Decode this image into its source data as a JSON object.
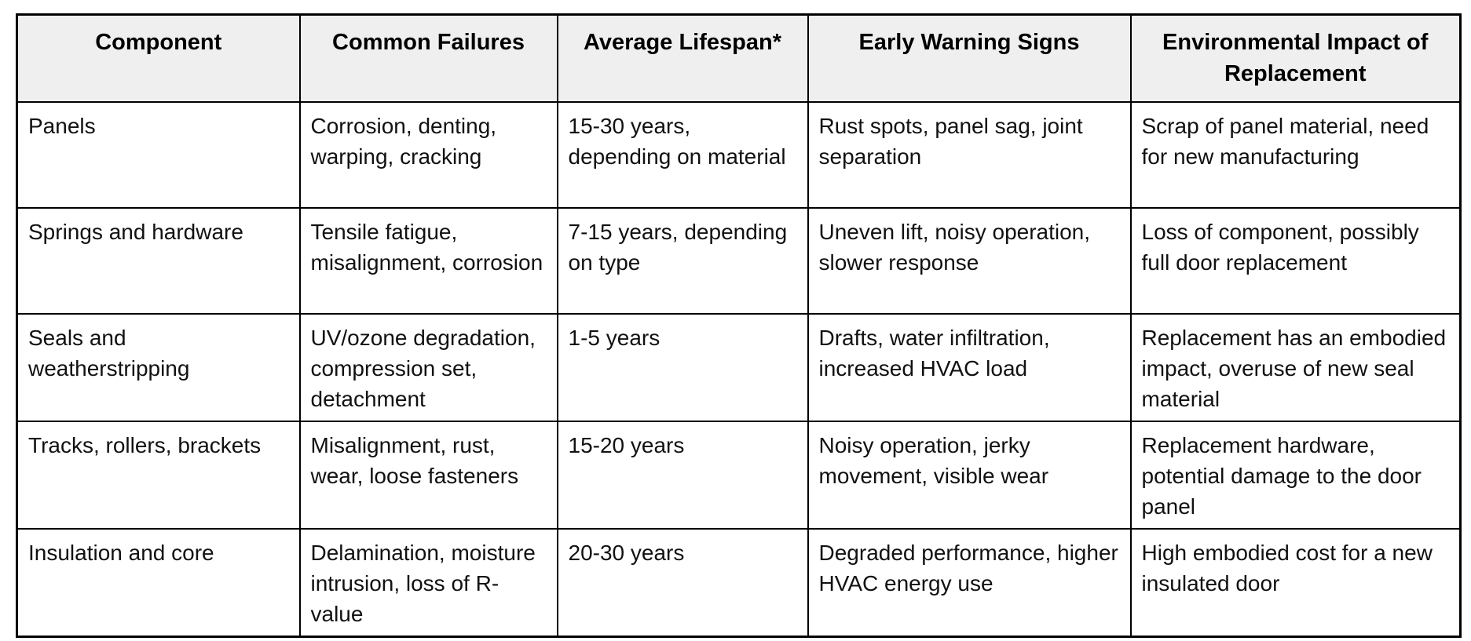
{
  "table": {
    "columns": [
      "Component",
      "Common Failures",
      "Average Lifespan*",
      "Early Warning Signs",
      "Environmental Impact of Replacement"
    ],
    "rows": [
      [
        "Panels",
        "Corrosion, denting, warping, cracking",
        "15-30 years, depending on material",
        "Rust spots, panel sag, joint separation",
        "Scrap of panel material, need for new manufacturing"
      ],
      [
        "Springs and hardware",
        "Tensile fatigue, misalignment, corrosion",
        "7-15 years, depending on type",
        "Uneven lift, noisy operation, slower response",
        "Loss of component, possibly full door replacement"
      ],
      [
        "Seals and weatherstripping",
        "UV/ozone degradation, compression set, detachment",
        "1-5 years",
        "Drafts, water infiltration, increased HVAC load",
        "Replacement has an embodied impact, overuse of new seal material"
      ],
      [
        "Tracks, rollers, brackets",
        "Misalignment, rust, wear, loose fasteners",
        "15-20 years",
        "Noisy operation, jerky movement, visible wear",
        "Replacement hardware, potential damage to the door panel"
      ],
      [
        "Insulation and core",
        "Delamination, moisture intrusion, loss of R-value",
        "20-30 years",
        "Degraded performance, higher HVAC energy use",
        "High embodied cost for a new insulated door"
      ]
    ],
    "colors": {
      "header_bg": "#efefef",
      "border": "#000000",
      "body_text": "#111111",
      "header_text": "#000000"
    }
  }
}
